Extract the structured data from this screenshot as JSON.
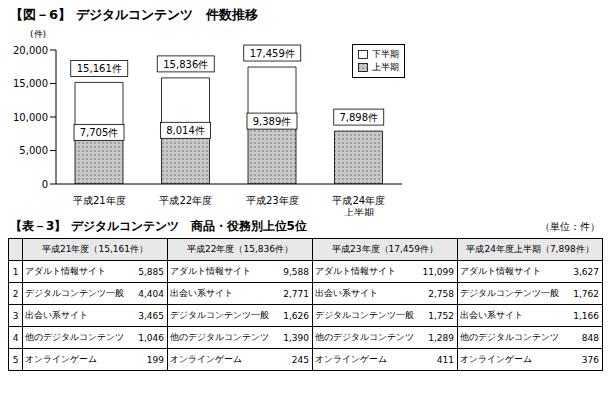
{
  "chart_data": {
    "type": "bar",
    "title": "【図－6】 デジタルコンテンツ　件数推移",
    "y_label": "(件)",
    "categories": [
      "平成21年度",
      "平成22年度",
      "平成23年度",
      "平成24年度\n上半期"
    ],
    "stacked": true,
    "series": [
      {
        "name": "上半期",
        "color": "#c8c8c8",
        "values": [
          7705,
          8014,
          9389,
          7898
        ],
        "value_labels": [
          "7,705件",
          "8,014件",
          "9,389件",
          null
        ]
      },
      {
        "name": "下半期",
        "color": "#ffffff",
        "values": [
          7456,
          7822,
          8070,
          null
        ]
      }
    ],
    "totals": [
      15161,
      15836,
      17459,
      7898
    ],
    "total_labels": [
      "15,161件",
      "15,836件",
      "17,459件",
      "7,898件"
    ],
    "ylim": [
      0,
      20000
    ],
    "yticks": [
      0,
      {
        "value": 5000,
        "label": "5,000"
      },
      {
        "value": 10000,
        "label": "10,000"
      },
      {
        "value": 15000,
        "label": "15,000"
      },
      {
        "value": 20000,
        "label": "20,000"
      }
    ],
    "grid": false,
    "legend": "upper right"
  },
  "table": {
    "title": "【表－3】 デジタルコンテンツ　商品・役務別上位5位",
    "unit": "（単位：件）",
    "ranks": [
      1,
      2,
      3,
      4,
      5
    ],
    "groups": [
      {
        "header": "平成21年度（15,161件）",
        "items": [
          [
            "アダルト情報サイト",
            "5,885"
          ],
          [
            "デジタルコンテンツ一般",
            "4,404"
          ],
          [
            "出会い系サイト",
            "3,465"
          ],
          [
            "他のデジタルコンテンツ",
            "1,046"
          ],
          [
            "オンラインゲーム",
            "199"
          ]
        ]
      },
      {
        "header": "平成22年度（15,836件）",
        "items": [
          [
            "アダルト情報サイト",
            "9,588"
          ],
          [
            "出会い系サイト",
            "2,771"
          ],
          [
            "デジタルコンテンツ一般",
            "1,626"
          ],
          [
            "他のデジタルコンテンツ",
            "1,390"
          ],
          [
            "オンラインゲーム",
            "245"
          ]
        ]
      },
      {
        "header": "平成23年度（17,459件）",
        "items": [
          [
            "アダルト情報サイト",
            "11,099"
          ],
          [
            "出会い系サイト",
            "2,758"
          ],
          [
            "デジタルコンテンツ一般",
            "1,752"
          ],
          [
            "他のデジタルコンテンツ",
            "1,289"
          ],
          [
            "オンラインゲーム",
            "411"
          ]
        ]
      },
      {
        "header": "平成24年度上半期（7,898件）",
        "items": [
          [
            "アダルト情報サイト",
            "3,627"
          ],
          [
            "デジタルコンテンツ一般",
            "1,762"
          ],
          [
            "出会い系サイト",
            "1,166"
          ],
          [
            "他のデジタルコンテンツ",
            "848"
          ],
          [
            "オンラインゲーム",
            "376"
          ]
        ]
      }
    ]
  }
}
